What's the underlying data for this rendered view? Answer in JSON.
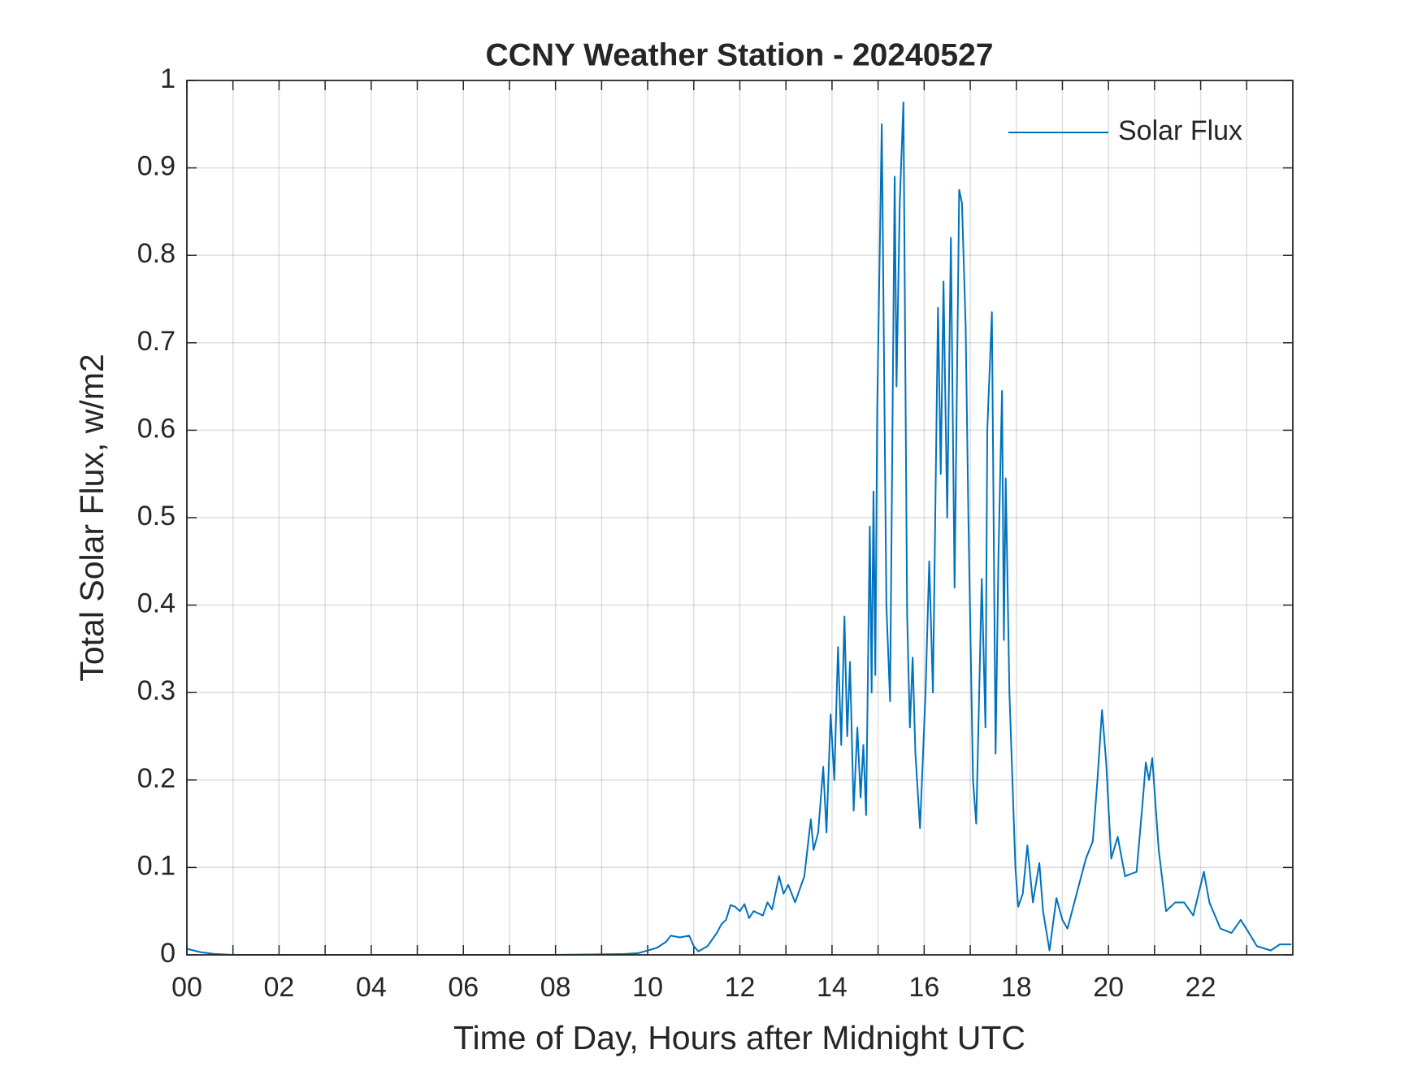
{
  "chart_data": {
    "type": "line",
    "title": "CCNY Weather Station - 20240527",
    "xlabel": "Time of Day, Hours after Midnight UTC",
    "ylabel": "Total Solar Flux, w/m2",
    "xlim": [
      0,
      24
    ],
    "ylim": [
      0,
      1
    ],
    "xticks": [
      {
        "value": 0,
        "label": "00"
      },
      {
        "value": 2,
        "label": "02"
      },
      {
        "value": 4,
        "label": "04"
      },
      {
        "value": 6,
        "label": "06"
      },
      {
        "value": 8,
        "label": "08"
      },
      {
        "value": 10,
        "label": "10"
      },
      {
        "value": 12,
        "label": "12"
      },
      {
        "value": 14,
        "label": "14"
      },
      {
        "value": 16,
        "label": "16"
      },
      {
        "value": 18,
        "label": "18"
      },
      {
        "value": 20,
        "label": "20"
      },
      {
        "value": 22,
        "label": "22"
      }
    ],
    "xminor_ticks": [
      1,
      3,
      5,
      7,
      9,
      11,
      13,
      15,
      17,
      19,
      21,
      23
    ],
    "yticks": [
      0,
      0.1,
      0.2,
      0.3,
      0.4,
      0.5,
      0.6,
      0.7,
      0.8,
      0.9,
      1
    ],
    "grid": true,
    "legend": "top-right",
    "series": [
      {
        "name": "Solar Flux",
        "color": "#0072bd",
        "x": [
          0,
          0.3,
          0.6,
          1,
          2,
          4,
          6,
          8,
          9.5,
          9.8,
          10,
          10.2,
          10.4,
          10.5,
          10.7,
          10.9,
          11,
          11.1,
          11.3,
          11.5,
          11.6,
          11.7,
          11.8,
          11.9,
          12,
          12.1,
          12.2,
          12.3,
          12.5,
          12.6,
          12.7,
          12.85,
          12.95,
          13.05,
          13.2,
          13.3,
          13.4,
          13.54,
          13.6,
          13.7,
          13.81,
          13.88,
          13.97,
          14.05,
          14.13,
          14.2,
          14.27,
          14.33,
          14.39,
          14.47,
          14.55,
          14.62,
          14.68,
          14.74,
          14.82,
          14.86,
          14.9,
          14.94,
          14.98,
          15.08,
          15.18,
          15.26,
          15.36,
          15.4,
          15.47,
          15.55,
          15.63,
          15.69,
          15.75,
          15.81,
          15.91,
          16.03,
          16.11,
          16.19,
          16.3,
          16.36,
          16.42,
          16.5,
          16.58,
          16.66,
          16.76,
          16.82,
          16.9,
          16.96,
          17.06,
          17.13,
          17.25,
          17.33,
          17.37,
          17.47,
          17.55,
          17.61,
          17.69,
          17.73,
          17.77,
          17.85,
          17.98,
          18.04,
          18.14,
          18.24,
          18.36,
          18.5,
          18.58,
          18.72,
          18.87,
          19.0,
          19.11,
          19.31,
          19.51,
          19.66,
          19.76,
          19.86,
          19.95,
          20.06,
          20.2,
          20.36,
          20.61,
          20.75,
          20.81,
          20.88,
          20.95,
          21.09,
          21.25,
          21.45,
          21.64,
          21.84,
          22.07,
          22.19,
          22.43,
          22.67,
          22.87,
          23.05,
          23.22,
          23.52,
          23.72,
          23.97
        ],
        "values": [
          0.007,
          0.003,
          0.001,
          0,
          0,
          0,
          0,
          0,
          0.001,
          0.002,
          0.005,
          0.008,
          0.015,
          0.022,
          0.02,
          0.022,
          0.01,
          0.004,
          0.01,
          0.025,
          0.035,
          0.04,
          0.057,
          0.055,
          0.05,
          0.058,
          0.042,
          0.05,
          0.045,
          0.06,
          0.052,
          0.09,
          0.07,
          0.08,
          0.06,
          0.075,
          0.09,
          0.155,
          0.12,
          0.14,
          0.215,
          0.14,
          0.275,
          0.2,
          0.352,
          0.24,
          0.387,
          0.25,
          0.335,
          0.165,
          0.26,
          0.18,
          0.24,
          0.16,
          0.49,
          0.3,
          0.53,
          0.32,
          0.62,
          0.95,
          0.4,
          0.29,
          0.89,
          0.65,
          0.86,
          0.975,
          0.39,
          0.26,
          0.34,
          0.23,
          0.145,
          0.3,
          0.45,
          0.3,
          0.74,
          0.55,
          0.77,
          0.5,
          0.82,
          0.42,
          0.875,
          0.86,
          0.72,
          0.5,
          0.2,
          0.15,
          0.43,
          0.26,
          0.6,
          0.735,
          0.23,
          0.45,
          0.645,
          0.36,
          0.545,
          0.3,
          0.1,
          0.055,
          0.07,
          0.125,
          0.06,
          0.105,
          0.05,
          0.005,
          0.065,
          0.04,
          0.03,
          0.07,
          0.11,
          0.13,
          0.2,
          0.28,
          0.22,
          0.11,
          0.135,
          0.09,
          0.095,
          0.18,
          0.22,
          0.2,
          0.225,
          0.12,
          0.05,
          0.06,
          0.06,
          0.045,
          0.095,
          0.06,
          0.03,
          0.025,
          0.04,
          0.025,
          0.01,
          0.005,
          0.012,
          0.012
        ]
      }
    ]
  }
}
